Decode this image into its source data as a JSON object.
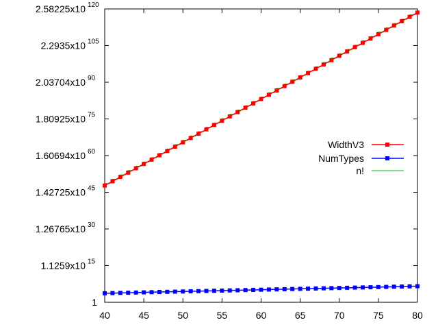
{
  "chart_data": {
    "type": "line",
    "title": "",
    "xlabel": "",
    "ylabel": "",
    "y_scale": "log",
    "grid": false,
    "legend_position": "right",
    "xlim": [
      40,
      80
    ],
    "ylim_log10": [
      0,
      120.41
    ],
    "x_ticks": [
      40,
      45,
      50,
      55,
      60,
      65,
      70,
      75,
      80
    ],
    "y_ticks": [
      {
        "log10": 0,
        "mantissa": "1",
        "exponent": ""
      },
      {
        "log10": 15.05,
        "mantissa": "1.1259x10",
        "exponent": "15"
      },
      {
        "log10": 30.1,
        "mantissa": "1.26765x10",
        "exponent": "30"
      },
      {
        "log10": 45.15,
        "mantissa": "1.42725x10",
        "exponent": "45"
      },
      {
        "log10": 60.21,
        "mantissa": "1.60694x10",
        "exponent": "60"
      },
      {
        "log10": 75.26,
        "mantissa": "1.80925x10",
        "exponent": "75"
      },
      {
        "log10": 90.31,
        "mantissa": "2.03704x10",
        "exponent": "90"
      },
      {
        "log10": 105.36,
        "mantissa": "2.2935x10",
        "exponent": "105"
      },
      {
        "log10": 120.41,
        "mantissa": "2.58225x10",
        "exponent": "120"
      }
    ],
    "series": [
      {
        "name": "WidthV3",
        "color": "#ff0000",
        "marker": "square",
        "x_start": 40,
        "x_end": 80,
        "log10_start": 47.9,
        "log10_end": 118.9
      },
      {
        "name": "NumTypes",
        "color": "#0000ff",
        "marker": "square",
        "x_start": 40,
        "x_end": 80,
        "log10_start": 3.7,
        "log10_end": 6.6
      },
      {
        "name": "n!",
        "color": "#00c000",
        "marker": "none",
        "x_start": 40,
        "x_end": 80,
        "log10_start": 47.9,
        "log10_end": 118.9
      }
    ]
  }
}
